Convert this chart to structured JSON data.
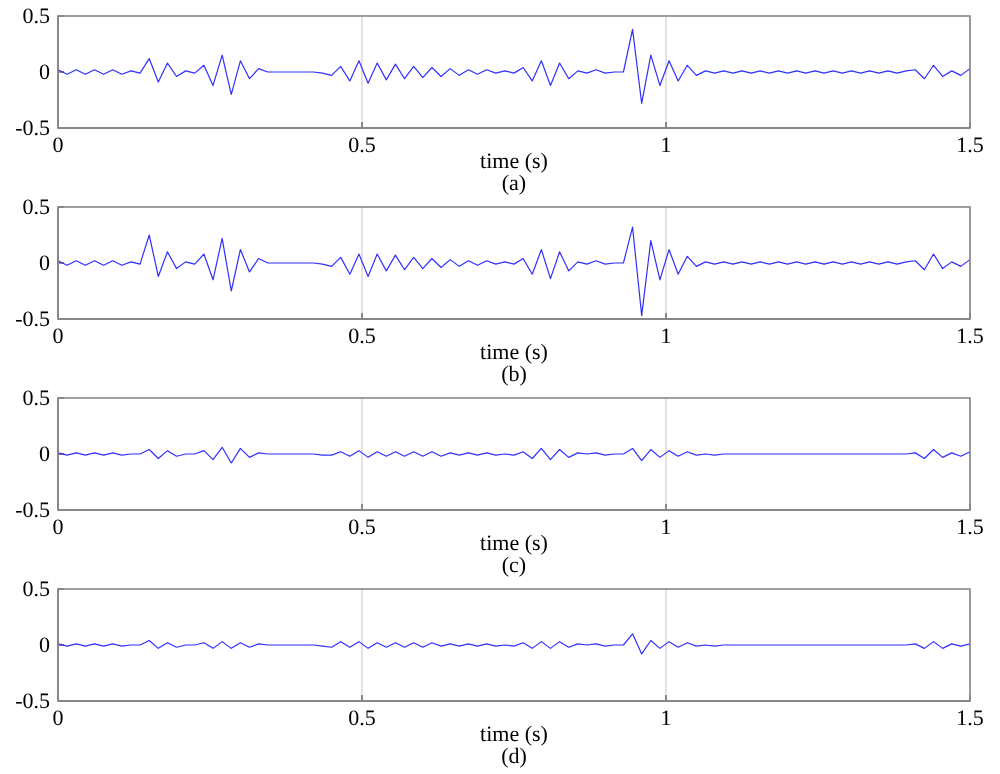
{
  "chart_data": [
    {
      "type": "line",
      "xlabel": "time (s)",
      "annotations": [
        "(a)"
      ],
      "xlim": [
        0,
        1.5
      ],
      "ylim": [
        -0.5,
        0.5
      ],
      "xticks": [
        0,
        0.5,
        1,
        1.5
      ],
      "yticks": [
        -0.5,
        0,
        0.5
      ],
      "grid": "x",
      "x": [
        0,
        0.015,
        0.03,
        0.045,
        0.06,
        0.075,
        0.09,
        0.105,
        0.12,
        0.135,
        0.15,
        0.165,
        0.18,
        0.195,
        0.21,
        0.225,
        0.24,
        0.255,
        0.27,
        0.285,
        0.3,
        0.315,
        0.33,
        0.345,
        0.36,
        0.375,
        0.39,
        0.405,
        0.42,
        0.435,
        0.45,
        0.465,
        0.48,
        0.495,
        0.51,
        0.525,
        0.54,
        0.555,
        0.57,
        0.585,
        0.6,
        0.615,
        0.63,
        0.645,
        0.66,
        0.675,
        0.69,
        0.705,
        0.72,
        0.735,
        0.75,
        0.765,
        0.78,
        0.795,
        0.81,
        0.825,
        0.84,
        0.855,
        0.87,
        0.885,
        0.9,
        0.915,
        0.93,
        0.945,
        0.96,
        0.975,
        0.99,
        1.005,
        1.02,
        1.035,
        1.05,
        1.065,
        1.08,
        1.095,
        1.11,
        1.125,
        1.14,
        1.155,
        1.17,
        1.185,
        1.2,
        1.215,
        1.23,
        1.245,
        1.26,
        1.275,
        1.29,
        1.305,
        1.32,
        1.335,
        1.35,
        1.365,
        1.38,
        1.395,
        1.41,
        1.425,
        1.44,
        1.455,
        1.47,
        1.485,
        1.5
      ],
      "series": [
        {
          "color": "#2f2fff",
          "values": [
            0.02,
            -0.02,
            0.02,
            -0.02,
            0.02,
            -0.02,
            0.02,
            -0.02,
            0.01,
            -0.01,
            0.12,
            -0.09,
            0.08,
            -0.04,
            0.01,
            -0.01,
            0.06,
            -0.12,
            0.15,
            -0.2,
            0.1,
            -0.06,
            0.03,
            0,
            0,
            0,
            0,
            0,
            0,
            -0.01,
            -0.03,
            0.05,
            -0.08,
            0.1,
            -0.1,
            0.08,
            -0.07,
            0.07,
            -0.06,
            0.05,
            -0.05,
            0.04,
            -0.04,
            0.03,
            -0.03,
            0.02,
            -0.02,
            0.02,
            -0.01,
            0.01,
            -0.01,
            0.04,
            -0.08,
            0.1,
            -0.12,
            0.08,
            -0.06,
            0.01,
            -0.01,
            0.02,
            -0.01,
            0,
            0,
            0.38,
            -0.28,
            0.15,
            -0.12,
            0.1,
            -0.08,
            0.06,
            -0.03,
            0.01,
            -0.01,
            0.01,
            -0.01,
            0.01,
            -0.01,
            0.01,
            -0.01,
            0.01,
            -0.01,
            0.01,
            -0.01,
            0.01,
            -0.01,
            0.01,
            -0.01,
            0.01,
            -0.01,
            0.01,
            -0.01,
            0.01,
            -0.01,
            0.01,
            0.02,
            -0.06,
            0.06,
            -0.04,
            0.01,
            -0.03,
            0.03
          ]
        }
      ]
    },
    {
      "type": "line",
      "xlabel": "time (s)",
      "annotations": [
        "(b)"
      ],
      "xlim": [
        0,
        1.5
      ],
      "ylim": [
        -0.5,
        0.5
      ],
      "xticks": [
        0,
        0.5,
        1,
        1.5
      ],
      "yticks": [
        -0.5,
        0,
        0.5
      ],
      "grid": "x",
      "x": [
        0,
        0.015,
        0.03,
        0.045,
        0.06,
        0.075,
        0.09,
        0.105,
        0.12,
        0.135,
        0.15,
        0.165,
        0.18,
        0.195,
        0.21,
        0.225,
        0.24,
        0.255,
        0.27,
        0.285,
        0.3,
        0.315,
        0.33,
        0.345,
        0.36,
        0.375,
        0.39,
        0.405,
        0.42,
        0.435,
        0.45,
        0.465,
        0.48,
        0.495,
        0.51,
        0.525,
        0.54,
        0.555,
        0.57,
        0.585,
        0.6,
        0.615,
        0.63,
        0.645,
        0.66,
        0.675,
        0.69,
        0.705,
        0.72,
        0.735,
        0.75,
        0.765,
        0.78,
        0.795,
        0.81,
        0.825,
        0.84,
        0.855,
        0.87,
        0.885,
        0.9,
        0.915,
        0.93,
        0.945,
        0.96,
        0.975,
        0.99,
        1.005,
        1.02,
        1.035,
        1.05,
        1.065,
        1.08,
        1.095,
        1.11,
        1.125,
        1.14,
        1.155,
        1.17,
        1.185,
        1.2,
        1.215,
        1.23,
        1.245,
        1.26,
        1.275,
        1.29,
        1.305,
        1.32,
        1.335,
        1.35,
        1.365,
        1.38,
        1.395,
        1.41,
        1.425,
        1.44,
        1.455,
        1.47,
        1.485,
        1.5
      ],
      "series": [
        {
          "color": "#2f2fff",
          "values": [
            0.02,
            -0.02,
            0.02,
            -0.02,
            0.02,
            -0.02,
            0.02,
            -0.02,
            0.01,
            -0.01,
            0.25,
            -0.12,
            0.1,
            -0.05,
            0.01,
            -0.01,
            0.08,
            -0.15,
            0.22,
            -0.25,
            0.12,
            -0.08,
            0.04,
            0,
            0,
            0,
            0,
            0,
            0,
            -0.01,
            -0.03,
            0.05,
            -0.1,
            0.08,
            -0.12,
            0.08,
            -0.07,
            0.07,
            -0.06,
            0.05,
            -0.05,
            0.04,
            -0.04,
            0.03,
            -0.03,
            0.02,
            -0.02,
            0.02,
            -0.01,
            0.01,
            -0.01,
            0.04,
            -0.1,
            0.12,
            -0.14,
            0.1,
            -0.07,
            0.01,
            -0.01,
            0.02,
            -0.01,
            0,
            0,
            0.32,
            -0.47,
            0.2,
            -0.15,
            0.12,
            -0.1,
            0.06,
            -0.03,
            0.01,
            -0.01,
            0.01,
            -0.01,
            0.01,
            -0.01,
            0.01,
            -0.01,
            0.01,
            -0.01,
            0.01,
            -0.01,
            0.01,
            -0.01,
            0.01,
            -0.01,
            0.01,
            -0.01,
            0.01,
            -0.01,
            0.01,
            -0.01,
            0.01,
            0.02,
            -0.06,
            0.08,
            -0.05,
            0.01,
            -0.03,
            0.03
          ]
        }
      ]
    },
    {
      "type": "line",
      "xlabel": "time (s)",
      "annotations": [
        "(c)"
      ],
      "xlim": [
        0,
        1.5
      ],
      "ylim": [
        -0.5,
        0.5
      ],
      "xticks": [
        0,
        0.5,
        1,
        1.5
      ],
      "yticks": [
        -0.5,
        0,
        0.5
      ],
      "grid": "x",
      "x": [
        0,
        0.015,
        0.03,
        0.045,
        0.06,
        0.075,
        0.09,
        0.105,
        0.12,
        0.135,
        0.15,
        0.165,
        0.18,
        0.195,
        0.21,
        0.225,
        0.24,
        0.255,
        0.27,
        0.285,
        0.3,
        0.315,
        0.33,
        0.345,
        0.36,
        0.375,
        0.39,
        0.405,
        0.42,
        0.435,
        0.45,
        0.465,
        0.48,
        0.495,
        0.51,
        0.525,
        0.54,
        0.555,
        0.57,
        0.585,
        0.6,
        0.615,
        0.63,
        0.645,
        0.66,
        0.675,
        0.69,
        0.705,
        0.72,
        0.735,
        0.75,
        0.765,
        0.78,
        0.795,
        0.81,
        0.825,
        0.84,
        0.855,
        0.87,
        0.885,
        0.9,
        0.915,
        0.93,
        0.945,
        0.96,
        0.975,
        0.99,
        1.005,
        1.02,
        1.035,
        1.05,
        1.065,
        1.08,
        1.095,
        1.11,
        1.125,
        1.14,
        1.155,
        1.17,
        1.185,
        1.2,
        1.215,
        1.23,
        1.245,
        1.26,
        1.275,
        1.29,
        1.305,
        1.32,
        1.335,
        1.35,
        1.365,
        1.38,
        1.395,
        1.41,
        1.425,
        1.44,
        1.455,
        1.47,
        1.485,
        1.5
      ],
      "series": [
        {
          "color": "#2f2fff",
          "values": [
            0.01,
            -0.01,
            0.01,
            -0.01,
            0.01,
            -0.01,
            0.01,
            -0.01,
            0,
            0,
            0.04,
            -0.04,
            0.03,
            -0.02,
            0,
            0,
            0.03,
            -0.05,
            0.06,
            -0.08,
            0.05,
            -0.03,
            0.01,
            0,
            0,
            0,
            0,
            0,
            0,
            -0.01,
            -0.01,
            0.02,
            -0.02,
            0.03,
            -0.03,
            0.02,
            -0.02,
            0.02,
            -0.02,
            0.02,
            -0.02,
            0.02,
            -0.02,
            0.01,
            -0.01,
            0.01,
            -0.01,
            0.01,
            -0.01,
            0,
            -0.01,
            0.02,
            -0.04,
            0.05,
            -0.05,
            0.04,
            -0.03,
            0.01,
            0,
            0.01,
            -0.01,
            0,
            0,
            0.05,
            -0.06,
            0.04,
            -0.03,
            0.03,
            -0.02,
            0.02,
            -0.01,
            0,
            -0.01,
            0,
            0,
            0,
            0,
            0,
            0,
            0,
            0,
            0,
            0,
            0,
            0,
            0,
            0,
            0,
            0,
            0,
            0,
            0,
            0,
            0,
            0.01,
            -0.04,
            0.04,
            -0.03,
            0.01,
            -0.02,
            0.02
          ]
        }
      ]
    },
    {
      "type": "line",
      "xlabel": "time (s)",
      "annotations": [
        "(d)"
      ],
      "xlim": [
        0,
        1.5
      ],
      "ylim": [
        -0.5,
        0.5
      ],
      "xticks": [
        0,
        0.5,
        1,
        1.5
      ],
      "yticks": [
        -0.5,
        0,
        0.5
      ],
      "grid": "x",
      "x": [
        0,
        0.015,
        0.03,
        0.045,
        0.06,
        0.075,
        0.09,
        0.105,
        0.12,
        0.135,
        0.15,
        0.165,
        0.18,
        0.195,
        0.21,
        0.225,
        0.24,
        0.255,
        0.27,
        0.285,
        0.3,
        0.315,
        0.33,
        0.345,
        0.36,
        0.375,
        0.39,
        0.405,
        0.42,
        0.435,
        0.45,
        0.465,
        0.48,
        0.495,
        0.51,
        0.525,
        0.54,
        0.555,
        0.57,
        0.585,
        0.6,
        0.615,
        0.63,
        0.645,
        0.66,
        0.675,
        0.69,
        0.705,
        0.72,
        0.735,
        0.75,
        0.765,
        0.78,
        0.795,
        0.81,
        0.825,
        0.84,
        0.855,
        0.87,
        0.885,
        0.9,
        0.915,
        0.93,
        0.945,
        0.96,
        0.975,
        0.99,
        1.005,
        1.02,
        1.035,
        1.05,
        1.065,
        1.08,
        1.095,
        1.11,
        1.125,
        1.14,
        1.155,
        1.17,
        1.185,
        1.2,
        1.215,
        1.23,
        1.245,
        1.26,
        1.275,
        1.29,
        1.305,
        1.32,
        1.335,
        1.35,
        1.365,
        1.38,
        1.395,
        1.41,
        1.425,
        1.44,
        1.455,
        1.47,
        1.485,
        1.5
      ],
      "series": [
        {
          "color": "#2f2fff",
          "values": [
            0.01,
            -0.01,
            0.01,
            -0.01,
            0.01,
            -0.01,
            0.01,
            -0.01,
            0,
            0,
            0.04,
            -0.03,
            0.02,
            -0.02,
            0,
            0,
            0.02,
            -0.03,
            0.03,
            -0.03,
            0.02,
            -0.02,
            0.01,
            0,
            0,
            0,
            0,
            0,
            0,
            -0.01,
            -0.02,
            0.03,
            -0.02,
            0.03,
            -0.03,
            0.02,
            -0.02,
            0.02,
            -0.02,
            0.02,
            -0.02,
            0.02,
            -0.01,
            0.01,
            -0.01,
            0.01,
            -0.01,
            0.01,
            -0.01,
            0,
            -0.01,
            0.02,
            -0.03,
            0.03,
            -0.03,
            0.03,
            -0.02,
            0.01,
            0,
            0.01,
            -0.01,
            0,
            0,
            0.1,
            -0.08,
            0.04,
            -0.03,
            0.03,
            -0.02,
            0.02,
            -0.01,
            0,
            -0.01,
            0,
            0,
            0,
            0,
            0,
            0,
            0,
            0,
            0,
            0,
            0,
            0,
            0,
            0,
            0,
            0,
            0,
            0,
            0,
            0,
            0,
            0.01,
            -0.03,
            0.03,
            -0.03,
            0.01,
            -0.01,
            0.01
          ]
        }
      ]
    }
  ]
}
